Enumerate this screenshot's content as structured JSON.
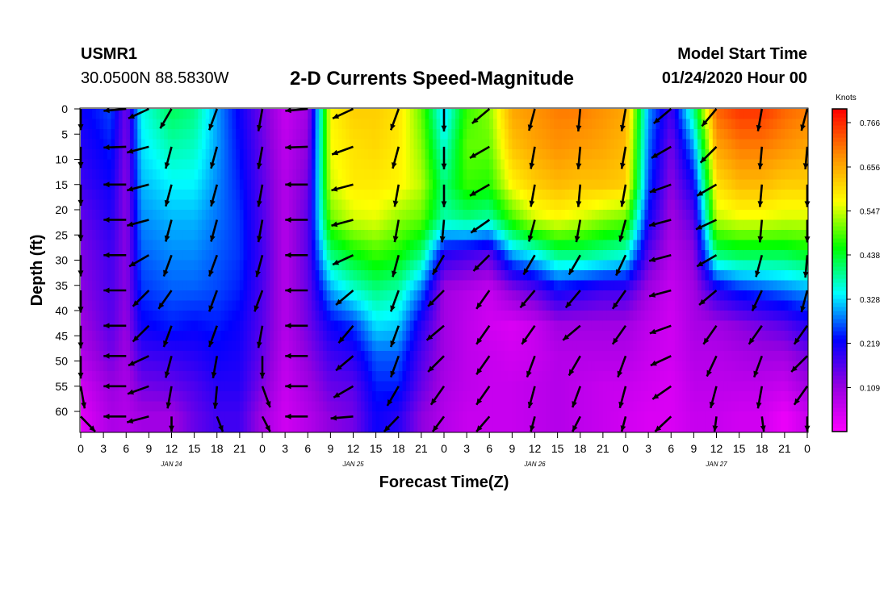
{
  "header": {
    "station": "USMR1",
    "coords": "30.0500N 88.5830W",
    "title": "2-D Currents Speed-Magnitude",
    "model_start_label": "Model Start Time",
    "model_start_value": "01/24/2020 Hour 00"
  },
  "chart_data": {
    "type": "heatmap",
    "xlabel": "Forecast Time(Z)",
    "ylabel": "Depth (ft)",
    "x_range_hours": [
      0,
      96
    ],
    "x_tick_labels": [
      "0",
      "3",
      "6",
      "9",
      "12",
      "15",
      "18",
      "21",
      "0",
      "3",
      "6",
      "9",
      "12",
      "15",
      "18",
      "21",
      "0",
      "3",
      "6",
      "9",
      "12",
      "15",
      "18",
      "21",
      "0",
      "3",
      "6",
      "9",
      "12",
      "15",
      "18",
      "21",
      "0"
    ],
    "day_labels": [
      {
        "label": "JAN 24",
        "hour": 12
      },
      {
        "label": "JAN 25",
        "hour": 36
      },
      {
        "label": "JAN 26",
        "hour": 60
      },
      {
        "label": "JAN 27",
        "hour": 84
      }
    ],
    "y_range": [
      0,
      64
    ],
    "y_reversed": true,
    "y_ticks": [
      0,
      5,
      10,
      15,
      20,
      25,
      30,
      35,
      40,
      45,
      50,
      55,
      60
    ],
    "colorbar": {
      "unit": "Knots",
      "ticks": [
        "0.766",
        "0.656",
        "0.547",
        "0.438",
        "0.328",
        "0.219",
        "0.109"
      ],
      "tick_values": [
        0.766,
        0.656,
        0.547,
        0.438,
        0.328,
        0.219,
        0.109
      ],
      "range": [
        0.0,
        0.8
      ],
      "colors": [
        "#ff00ff",
        "#9400e0",
        "#0000ff",
        "#00ffff",
        "#00ff00",
        "#ffff00",
        "#ff8c00",
        "#ff0000"
      ]
    },
    "arrow_times_hours": [
      0,
      6,
      9,
      12,
      18,
      24,
      30,
      36,
      42,
      48,
      54,
      60,
      66,
      72,
      78,
      84,
      90,
      96
    ],
    "arrow_depths_ft": [
      0,
      7.5,
      15,
      22,
      29,
      36,
      43,
      49,
      55,
      61
    ],
    "speed_keyframes": [
      {
        "hour": 0,
        "speed_by_depth_top_to_bottom": [
          0.22,
          0.2,
          0.18,
          0.15,
          0.13,
          0.12,
          0.1,
          0.08,
          0.05,
          0.03
        ]
      },
      {
        "hour": 4,
        "speed_by_depth_top_to_bottom": [
          0.26,
          0.24,
          0.22,
          0.2,
          0.18,
          0.17,
          0.16,
          0.14,
          0.11,
          0.09
        ]
      },
      {
        "hour": 6,
        "speed_by_depth_top_to_bottom": [
          0.14,
          0.13,
          0.12,
          0.12,
          0.12,
          0.12,
          0.11,
          0.1,
          0.09,
          0.08
        ]
      },
      {
        "hour": 8,
        "speed_by_depth_top_to_bottom": [
          0.35,
          0.33,
          0.31,
          0.29,
          0.27,
          0.25,
          0.22,
          0.18,
          0.14,
          0.1
        ]
      },
      {
        "hour": 12,
        "speed_by_depth_top_to_bottom": [
          0.42,
          0.38,
          0.34,
          0.31,
          0.29,
          0.27,
          0.24,
          0.19,
          0.15,
          0.1
        ]
      },
      {
        "hour": 15,
        "speed_by_depth_top_to_bottom": [
          0.4,
          0.37,
          0.34,
          0.31,
          0.29,
          0.27,
          0.23,
          0.2,
          0.17,
          0.15
        ]
      },
      {
        "hour": 18,
        "speed_by_depth_top_to_bottom": [
          0.3,
          0.3,
          0.29,
          0.28,
          0.27,
          0.26,
          0.24,
          0.22,
          0.2,
          0.18
        ]
      },
      {
        "hour": 21,
        "speed_by_depth_top_to_bottom": [
          0.22,
          0.23,
          0.24,
          0.25,
          0.25,
          0.24,
          0.22,
          0.21,
          0.2,
          0.18
        ]
      },
      {
        "hour": 24,
        "speed_by_depth_top_to_bottom": [
          0.14,
          0.15,
          0.16,
          0.17,
          0.18,
          0.17,
          0.16,
          0.15,
          0.13,
          0.1
        ]
      },
      {
        "hour": 27,
        "speed_by_depth_top_to_bottom": [
          0.06,
          0.07,
          0.08,
          0.08,
          0.08,
          0.08,
          0.08,
          0.07,
          0.06,
          0.05
        ]
      },
      {
        "hour": 30,
        "speed_by_depth_top_to_bottom": [
          0.1,
          0.12,
          0.14,
          0.16,
          0.16,
          0.15,
          0.14,
          0.12,
          0.1,
          0.08
        ]
      },
      {
        "hour": 33,
        "speed_by_depth_top_to_bottom": [
          0.58,
          0.57,
          0.55,
          0.5,
          0.4,
          0.3,
          0.22,
          0.18,
          0.15,
          0.12
        ]
      },
      {
        "hour": 36,
        "speed_by_depth_top_to_bottom": [
          0.62,
          0.6,
          0.59,
          0.55,
          0.45,
          0.36,
          0.25,
          0.2,
          0.16,
          0.14
        ]
      },
      {
        "hour": 39,
        "speed_by_depth_top_to_bottom": [
          0.62,
          0.61,
          0.59,
          0.56,
          0.48,
          0.4,
          0.33,
          0.27,
          0.24,
          0.22
        ]
      },
      {
        "hour": 42,
        "speed_by_depth_top_to_bottom": [
          0.6,
          0.59,
          0.58,
          0.52,
          0.46,
          0.38,
          0.32,
          0.27,
          0.24,
          0.2
        ]
      },
      {
        "hour": 45,
        "speed_by_depth_top_to_bottom": [
          0.5,
          0.52,
          0.54,
          0.5,
          0.4,
          0.28,
          0.2,
          0.17,
          0.15,
          0.12
        ]
      },
      {
        "hour": 48,
        "speed_by_depth_top_to_bottom": [
          0.32,
          0.36,
          0.4,
          0.38,
          0.2,
          0.1,
          0.1,
          0.1,
          0.09,
          0.08
        ]
      },
      {
        "hour": 51,
        "speed_by_depth_top_to_bottom": [
          0.48,
          0.5,
          0.48,
          0.4,
          0.18,
          0.08,
          0.07,
          0.07,
          0.07,
          0.06
        ]
      },
      {
        "hour": 54,
        "speed_by_depth_top_to_bottom": [
          0.52,
          0.5,
          0.47,
          0.38,
          0.16,
          0.06,
          0.05,
          0.06,
          0.06,
          0.06
        ]
      },
      {
        "hour": 57,
        "speed_by_depth_top_to_bottom": [
          0.66,
          0.63,
          0.58,
          0.48,
          0.3,
          0.12,
          0.04,
          0.05,
          0.06,
          0.06
        ]
      },
      {
        "hour": 60,
        "speed_by_depth_top_to_bottom": [
          0.68,
          0.66,
          0.62,
          0.55,
          0.34,
          0.16,
          0.06,
          0.06,
          0.07,
          0.07
        ]
      },
      {
        "hour": 63,
        "speed_by_depth_top_to_bottom": [
          0.7,
          0.68,
          0.64,
          0.57,
          0.4,
          0.22,
          0.1,
          0.08,
          0.08,
          0.08
        ]
      },
      {
        "hour": 66,
        "speed_by_depth_top_to_bottom": [
          0.7,
          0.67,
          0.63,
          0.55,
          0.4,
          0.2,
          0.1,
          0.08,
          0.07,
          0.07
        ]
      },
      {
        "hour": 69,
        "speed_by_depth_top_to_bottom": [
          0.68,
          0.66,
          0.63,
          0.52,
          0.38,
          0.18,
          0.1,
          0.08,
          0.06,
          0.06
        ]
      },
      {
        "hour": 72,
        "speed_by_depth_top_to_bottom": [
          0.66,
          0.64,
          0.62,
          0.5,
          0.36,
          0.18,
          0.1,
          0.08,
          0.06,
          0.05
        ]
      },
      {
        "hour": 75,
        "speed_by_depth_top_to_bottom": [
          0.3,
          0.28,
          0.26,
          0.22,
          0.16,
          0.1,
          0.07,
          0.06,
          0.05,
          0.04
        ]
      },
      {
        "hour": 78,
        "speed_by_depth_top_to_bottom": [
          0.18,
          0.14,
          0.12,
          0.1,
          0.08,
          0.06,
          0.05,
          0.05,
          0.04,
          0.04
        ]
      },
      {
        "hour": 81,
        "speed_by_depth_top_to_bottom": [
          0.4,
          0.3,
          0.22,
          0.16,
          0.12,
          0.1,
          0.09,
          0.08,
          0.07,
          0.06
        ]
      },
      {
        "hour": 84,
        "speed_by_depth_top_to_bottom": [
          0.72,
          0.66,
          0.6,
          0.54,
          0.4,
          0.2,
          0.1,
          0.08,
          0.07,
          0.06
        ]
      },
      {
        "hour": 87,
        "speed_by_depth_top_to_bottom": [
          0.76,
          0.7,
          0.64,
          0.56,
          0.42,
          0.24,
          0.12,
          0.09,
          0.07,
          0.05
        ]
      },
      {
        "hour": 90,
        "speed_by_depth_top_to_bottom": [
          0.76,
          0.7,
          0.64,
          0.56,
          0.42,
          0.26,
          0.14,
          0.1,
          0.07,
          0.05
        ]
      },
      {
        "hour": 93,
        "speed_by_depth_top_to_bottom": [
          0.72,
          0.68,
          0.62,
          0.55,
          0.42,
          0.28,
          0.16,
          0.1,
          0.06,
          0.02
        ]
      },
      {
        "hour": 96,
        "speed_by_depth_top_to_bottom": [
          0.7,
          0.66,
          0.62,
          0.55,
          0.44,
          0.3,
          0.2,
          0.14,
          0.1,
          0.06
        ]
      }
    ],
    "direction_keyframes_deg": [
      {
        "hour": 0,
        "dir_by_depth_top_to_bottom": [
          200,
          200,
          200,
          200,
          200,
          190,
          180,
          180,
          170,
          140
        ]
      },
      {
        "hour": 6,
        "dir_by_depth_top_to_bottom": [
          265,
          268,
          270,
          270,
          270,
          270,
          270,
          270,
          270,
          270
        ]
      },
      {
        "hour": 9,
        "dir_by_depth_top_to_bottom": [
          245,
          255,
          255,
          255,
          240,
          225,
          225,
          245,
          250,
          255
        ]
      },
      {
        "hour": 12,
        "dir_by_depth_top_to_bottom": [
          210,
          195,
          195,
          195,
          200,
          215,
          200,
          195,
          190,
          180
        ]
      },
      {
        "hour": 18,
        "dir_by_depth_top_to_bottom": [
          200,
          195,
          195,
          195,
          200,
          200,
          200,
          190,
          185,
          165
        ]
      },
      {
        "hour": 24,
        "dir_by_depth_top_to_bottom": [
          190,
          190,
          190,
          190,
          195,
          200,
          190,
          180,
          160,
          160
        ]
      },
      {
        "hour": 30,
        "dir_by_depth_top_to_bottom": [
          265,
          268,
          270,
          270,
          270,
          270,
          270,
          270,
          270,
          270
        ]
      },
      {
        "hour": 33,
        "dir_by_depth_top_to_bottom": [
          265,
          265,
          265,
          262,
          258,
          250,
          240,
          240,
          250,
          265
        ]
      },
      {
        "hour": 36,
        "dir_by_depth_top_to_bottom": [
          245,
          250,
          255,
          255,
          245,
          230,
          220,
          230,
          240,
          265
        ]
      },
      {
        "hour": 42,
        "dir_by_depth_top_to_bottom": [
          200,
          195,
          190,
          190,
          195,
          200,
          200,
          200,
          210,
          220
        ]
      },
      {
        "hour": 48,
        "dir_by_depth_top_to_bottom": [
          180,
          180,
          180,
          185,
          210,
          225,
          230,
          225,
          215,
          210
        ]
      },
      {
        "hour": 54,
        "dir_by_depth_top_to_bottom": [
          230,
          240,
          240,
          235,
          225,
          215,
          215,
          215,
          215,
          215
        ]
      },
      {
        "hour": 60,
        "dir_by_depth_top_to_bottom": [
          195,
          190,
          190,
          195,
          210,
          220,
          215,
          200,
          195,
          190
        ]
      },
      {
        "hour": 66,
        "dir_by_depth_top_to_bottom": [
          185,
          185,
          185,
          190,
          210,
          220,
          230,
          210,
          200,
          200
        ]
      },
      {
        "hour": 72,
        "dir_by_depth_top_to_bottom": [
          190,
          190,
          190,
          195,
          205,
          215,
          215,
          200,
          195,
          190
        ]
      },
      {
        "hour": 78,
        "dir_by_depth_top_to_bottom": [
          230,
          240,
          250,
          255,
          255,
          255,
          250,
          245,
          235,
          225
        ]
      },
      {
        "hour": 84,
        "dir_by_depth_top_to_bottom": [
          220,
          225,
          240,
          245,
          240,
          230,
          215,
          205,
          195,
          185
        ]
      },
      {
        "hour": 90,
        "dir_by_depth_top_to_bottom": [
          190,
          185,
          185,
          185,
          195,
          205,
          215,
          200,
          190,
          175
        ]
      },
      {
        "hour": 96,
        "dir_by_depth_top_to_bottom": [
          195,
          185,
          180,
          180,
          185,
          195,
          215,
          225,
          215,
          165
        ]
      }
    ]
  }
}
